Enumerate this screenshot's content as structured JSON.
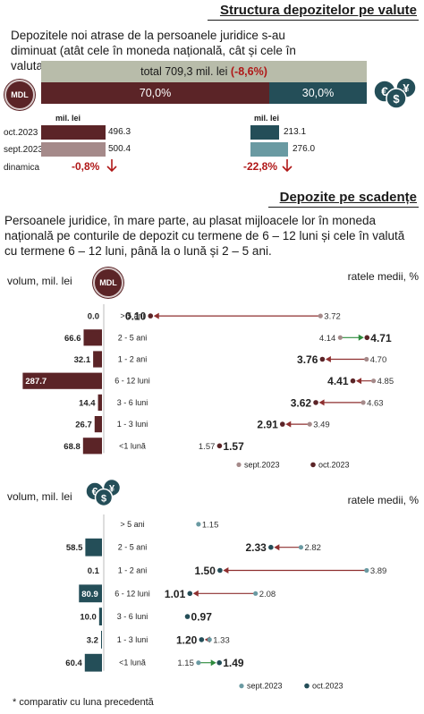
{
  "section1": {
    "title": "Structura depozitelor pe valute",
    "subtitle": "Depozitele noi atrase de la persoanele juridice s-au diminuat (atât cele în moneda națională, cât și cele în valuta)*.",
    "total_prefix": "total 709,3 mil. lei ",
    "total_change": "(-8,6%)",
    "mdl_icon_label": "MDL",
    "share_mdl": "70,0%",
    "share_fx": "30,0%",
    "share_mdl_value": 70.0,
    "share_fx_value": 30.0,
    "unit_label": "mil. lei",
    "rows": [
      "oct.2023",
      "sept.2023",
      "dinamica"
    ],
    "mdl_values": [
      "496.3",
      "500.4"
    ],
    "mdl_change": "-0,8%",
    "fx_values": [
      "213.1",
      "276.0"
    ],
    "fx_change": "-22,8%"
  },
  "section2": {
    "title": "Depozite pe scadențe",
    "description": "Persoanele juridice, în mare parte, au plasat mijloacele lor în moneda națională pe conturile de depozit cu termene de 6 – 12 luni și cele în valută cu termene 6 – 12 luni, până la o lună și 2 – 5 ani."
  },
  "colors": {
    "maroon": "#5b2427",
    "teal": "#244e58",
    "sept_mdl": "#a58a8a",
    "sept_fx": "#6a9aa2",
    "arrow_up": "#2e8b3d",
    "arrow_down": "#8e2f2f",
    "red_text": "#b01818"
  },
  "chart_data": [
    {
      "type": "bar",
      "currency": "MDL",
      "icon_label": "MDL",
      "volume_label": "volum, mil. lei",
      "rate_label": "ratele medii, %",
      "categories": [
        "> 5 ani",
        "2 - 5 ani",
        "1 - 2 ani",
        "6 - 12 luni",
        "3 - 6 luni",
        "1 - 3 luni",
        "<1 lună"
      ],
      "volumes": [
        0.0,
        66.6,
        32.1,
        287.7,
        14.4,
        26.7,
        68.8
      ],
      "volume_labels": [
        "0.0",
        "66.6",
        "32.1",
        "287.7",
        "14.4",
        "26.7",
        "68.8"
      ],
      "rates_sept": [
        3.72,
        4.14,
        4.7,
        4.85,
        4.63,
        3.49,
        1.57
      ],
      "rates_oct": [
        0.1,
        4.71,
        3.76,
        4.41,
        3.62,
        2.91,
        1.57
      ],
      "rate_sept_labels": [
        "3.72",
        "4.14",
        "4.70",
        "4.85",
        "4.63",
        "3.49",
        "1.57"
      ],
      "rate_oct_labels": [
        "0.10",
        "4.71",
        "3.76",
        "4.41",
        "3.62",
        "2.91",
        "1.57"
      ],
      "legend": [
        "sept.2023",
        "oct.2023"
      ]
    },
    {
      "type": "bar",
      "currency": "FX",
      "volume_label": "volum, mil. lei",
      "rate_label": "ratele medii, %",
      "categories": [
        "> 5 ani",
        "2 - 5 ani",
        "1 - 2 ani",
        "6 - 12 luni",
        "3 - 6 luni",
        "1 - 3 luni",
        "<1 lună"
      ],
      "volumes": [
        null,
        58.5,
        0.1,
        80.9,
        10.0,
        3.2,
        60.4
      ],
      "volume_labels": [
        "",
        "58.5",
        "0.1",
        "80.9",
        "10.0",
        "3.2",
        "60.4"
      ],
      "rates_sept": [
        1.15,
        2.82,
        3.89,
        2.08,
        null,
        1.33,
        1.15
      ],
      "rates_oct": [
        null,
        2.33,
        1.5,
        1.01,
        0.97,
        1.2,
        1.49
      ],
      "rate_sept_labels": [
        "1.15",
        "2.82",
        "3.89",
        "2.08",
        "",
        "1.33",
        "1.15"
      ],
      "rate_oct_labels": [
        "",
        "2.33",
        "1.50",
        "1.01",
        "0.97",
        "1.20",
        "1.49"
      ],
      "legend": [
        "sept.2023",
        "oct.2023"
      ]
    }
  ],
  "footnote": "* comparativ cu luna precedentă"
}
